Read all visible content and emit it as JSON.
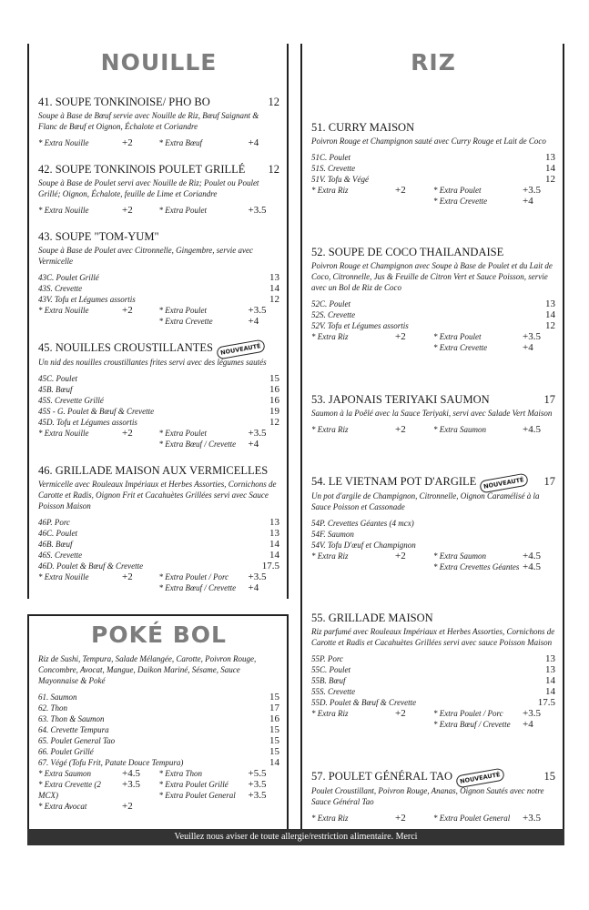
{
  "sections": [
    {
      "title": "NOUILLE",
      "items": [
        {
          "title": "41. SOUPE TONKINOISE/ PHO BO",
          "price": 12,
          "description": "Soupe à Base de Bœuf servie avec Nouille de Riz, Bœuf Saignant & Flanc de Bœuf et Oignon, Échalote et Coriandre",
          "extras": {
            "left": [
              {
                "label": "* Extra Nouille",
                "price": "+2"
              }
            ],
            "right": [
              {
                "label": "* Extra Bœuf",
                "price": "+4"
              }
            ]
          }
        },
        {
          "title": "42. SOUPE TONKINOIS POULET GRILLÉ",
          "price": 12,
          "description": "Soupe à Base de Poulet servi avec Nouille de Riz; Poulet ou Poulet Grillé; Oignon, Échalote, feuille de Lime et Coriandre",
          "extras": {
            "left": [
              {
                "label": "* Extra Nouille",
                "price": "+2"
              }
            ],
            "right": [
              {
                "label": "* Extra Poulet",
                "price": "+3.5"
              }
            ]
          }
        },
        {
          "title": "43. SOUPE \"TOM-YUM\"",
          "description": "Soupe à Base de Poulet avec Citronnelle, Gingembre, servie avec Vermicelle",
          "variants": [
            {
              "code": "43C.",
              "name": "Poulet Grillé",
              "price": 13
            },
            {
              "code": "43S.",
              "name": "Crevette",
              "price": 14
            },
            {
              "code": "43V.",
              "name": "Tofu et Légumes assortis",
              "price": 12
            }
          ],
          "extras": {
            "left": [
              {
                "label": "* Extra Nouille",
                "price": "+2"
              }
            ],
            "right": [
              {
                "label": "* Extra Poulet",
                "price": "+3.5"
              },
              {
                "label": "* Extra Crevette",
                "price": "+4"
              }
            ]
          }
        },
        {
          "title": "45. NOUILLES CROUSTILLANTES",
          "badge": "NOUVEAUTÉ",
          "description": "Un nid des nouilles croustillantes frites servi avec des légumes sautés",
          "variants": [
            {
              "code": "45C.",
              "name": "Poulet",
              "price": 15
            },
            {
              "code": "45B.",
              "name": "Bœuf",
              "price": 16
            },
            {
              "code": "45S.",
              "name": "Crevette Grillé",
              "price": 16
            },
            {
              "code": "45S - G.",
              "name": "Poulet & Bœuf & Crevette",
              "price": 19
            },
            {
              "code": "45D.",
              "name": "Tofu et Légumes assortis",
              "price": 12
            }
          ],
          "extras": {
            "left": [
              {
                "label": "* Extra Nouille",
                "price": "+2"
              }
            ],
            "right": [
              {
                "label": "* Extra Poulet",
                "price": "+3.5"
              },
              {
                "label": "* Extra Bœuf / Crevette",
                "price": "+4"
              }
            ]
          }
        },
        {
          "title": "46. GRILLADE MAISON AUX VERMICELLES",
          "description": "Vermicelle avec Rouleaux Impériaux et Herbes Assorties, Cornichons de Carotte et Radis, Oignon Frit et Cacahuètes Grillées servi avec Sauce Poisson Maison",
          "variants": [
            {
              "code": "46P.",
              "name": "Porc",
              "price": 13
            },
            {
              "code": "46C.",
              "name": "Poulet",
              "price": 13
            },
            {
              "code": "46B.",
              "name": "Bœuf",
              "price": 14
            },
            {
              "code": "46S.",
              "name": "Crevette",
              "price": 14
            },
            {
              "code": "46D.",
              "name": "Poulet & Bœuf & Crevette",
              "price": 17.5
            }
          ],
          "extras": {
            "left": [
              {
                "label": "* Extra Nouille",
                "price": "+2"
              }
            ],
            "right": [
              {
                "label": "* Extra Poulet / Porc",
                "price": "+3.5"
              },
              {
                "label": "* Extra Bœuf / Crevette",
                "price": "+4"
              }
            ]
          }
        }
      ]
    },
    {
      "title": "POKÉ BOL",
      "items": [
        {
          "description": "Riz de Sushi, Tempura, Salade Mélangée, Carotte, Poivron Rouge, Concombre, Avocat, Mangue, Daikon Mariné, Sésame, Sauce Mayonnaise & Poké",
          "variants": [
            {
              "code": "61.",
              "name": "Saumon",
              "price": 15
            },
            {
              "code": "62.",
              "name": "Thon",
              "price": 17
            },
            {
              "code": "63.",
              "name": "Thon & Saumon",
              "price": 16
            },
            {
              "code": "64.",
              "name": "Crevette Tempura",
              "price": 15
            },
            {
              "code": "65.",
              "name": "Poulet General Tao",
              "price": 15
            },
            {
              "code": "66.",
              "name": "Poulet Grillé",
              "price": 15
            },
            {
              "code": "67.",
              "name": "Végé (Tofu Frit, Patate Douce Tempura)",
              "price": 14
            }
          ],
          "extras": {
            "left": [
              {
                "label": "* Extra Saumon",
                "price": "+4.5"
              },
              {
                "label": "* Extra Crevette (2 MCX)",
                "price": "+3.5"
              },
              {
                "label": "* Extra Avocat",
                "price": "+2"
              }
            ],
            "right": [
              {
                "label": "* Extra Thon",
                "price": "+5.5"
              },
              {
                "label": "* Extra Poulet Grillé",
                "price": "+3.5"
              },
              {
                "label": "* Extra Poulet General",
                "price": "+3.5"
              }
            ]
          }
        }
      ]
    },
    {
      "title": "RIZ",
      "items": [
        {
          "title": "51. CURRY MAISON",
          "description": "Poivron Rouge et Champignon sauté avec Curry Rouge et Lait de Coco",
          "variants": [
            {
              "code": "51C.",
              "name": "Poulet",
              "price": 13
            },
            {
              "code": "51S.",
              "name": "Crevette",
              "price": 14
            },
            {
              "code": "51V.",
              "name": "Tofu & Végé",
              "price": 12
            }
          ],
          "extras": {
            "left": [
              {
                "label": "* Extra Riz",
                "price": "+2"
              }
            ],
            "right": [
              {
                "label": "* Extra Poulet",
                "price": "+3.5"
              },
              {
                "label": "* Extra Crevette",
                "price": "+4"
              }
            ]
          }
        },
        {
          "title": "52. SOUPE DE COCO THAILANDAISE",
          "description": "Poivron Rouge et Champignon avec Soupe à Base de Poulet et du Lait de Coco, Citronnelle, Jus & Feuille de Citron Vert et Sauce Poisson, servie avec un Bol de Riz de Coco",
          "variants": [
            {
              "code": "52C.",
              "name": "Poulet",
              "price": 13
            },
            {
              "code": "52S.",
              "name": "Crevette",
              "price": 14
            },
            {
              "code": "52V.",
              "name": "Tofu et Légumes assortis",
              "price": 12
            }
          ],
          "extras": {
            "left": [
              {
                "label": "* Extra Riz",
                "price": "+2"
              }
            ],
            "right": [
              {
                "label": "* Extra Poulet",
                "price": "+3.5"
              },
              {
                "label": "* Extra Crevette",
                "price": "+4"
              }
            ]
          }
        },
        {
          "title": "53. JAPONAIS TERIYAKI SAUMON",
          "price": 17,
          "description": "Saumon à la Poêlé avec la Sauce Teriyaki, servi avec Salade Vert Maison",
          "extras": {
            "left": [
              {
                "label": "* Extra Riz",
                "price": "+2"
              }
            ],
            "right": [
              {
                "label": "* Extra Saumon",
                "price": "+4.5"
              }
            ]
          }
        },
        {
          "title": "54. LE VIETNAM POT D'ARGILE",
          "badge": "NOUVEAUTÉ",
          "price": 17,
          "description": "Un pot d'argile de Champignon, Citronnelle, Oignon Caramélisé  à la Sauce Poisson et Cassonade",
          "variants": [
            {
              "code": "54P.",
              "name": "Crevettes Géantes (4 mcx)"
            },
            {
              "code": "54F.",
              "name": "Saumon"
            },
            {
              "code": "54V.",
              "name": "Tofu D'œuf et Champignon"
            }
          ],
          "extras": {
            "left": [
              {
                "label": "* Extra Riz",
                "price": "+2"
              }
            ],
            "right": [
              {
                "label": "* Extra Saumon",
                "price": "+4.5"
              },
              {
                "label": "* Extra Crevettes Géantes",
                "price": "+4.5"
              }
            ]
          }
        },
        {
          "title": "55. GRILLADE MAISON",
          "description": "Riz parfumé avec Rouleaux Impériaux et Herbes Assorties, Cornichons de Carotte et Radis et Cacahuètes Grillées servi avec sauce Poisson Maison",
          "variants": [
            {
              "code": "55P.",
              "name": "Porc",
              "price": 13
            },
            {
              "code": "55C.",
              "name": "Poulet",
              "price": 13
            },
            {
              "code": "55B.",
              "name": "Bœuf",
              "price": 14
            },
            {
              "code": "55S.",
              "name": "Crevette",
              "price": 14
            },
            {
              "code": "55D.",
              "name": "Poulet & Bœuf & Crevette",
              "price": 17.5
            }
          ],
          "extras": {
            "left": [
              {
                "label": "* Extra Riz",
                "price": "+2"
              }
            ],
            "right": [
              {
                "label": "* Extra Poulet / Porc",
                "price": "+3.5"
              },
              {
                "label": "* Extra Bœuf / Crevette",
                "price": "+4"
              }
            ]
          }
        },
        {
          "title": "57. POULET GÉNÉRAL TAO",
          "badge": "NOUVEAUTÉ",
          "price": 15,
          "description": "Poulet Croustillant, Poivron Rouge, Ananas, Oignon Sautés avec notre Sauce Général Tao",
          "extras": {
            "left": [
              {
                "label": "* Extra Riz",
                "price": "+2"
              }
            ],
            "right": [
              {
                "label": "* Extra Poulet General",
                "price": "+3.5"
              }
            ]
          }
        }
      ]
    }
  ],
  "footer": "Veuillez nous aviser de toute allergie/restriction alimentaire. Merci"
}
